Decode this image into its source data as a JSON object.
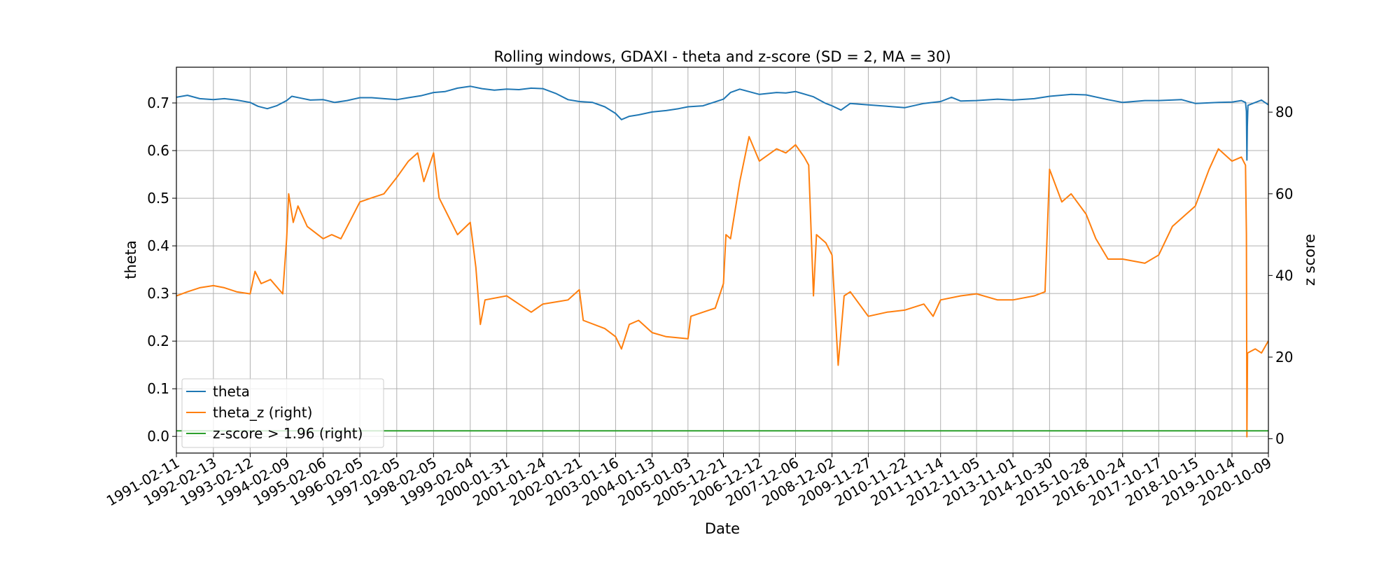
{
  "chart_data": {
    "type": "line",
    "title": "Rolling windows, GDAXI - theta and z-score (SD = 2, MA = 30)",
    "xlabel": "Date",
    "ylabel": "theta",
    "y2label": "z score",
    "grid": true,
    "legend_position": "lower-left",
    "ylim": [
      -0.035,
      0.775
    ],
    "y2lim": [
      -3.5,
      91
    ],
    "xlim": [
      "1991-02-11",
      "2020-10-09"
    ],
    "y_ticks": [
      "0.0",
      "0.1",
      "0.2",
      "0.3",
      "0.4",
      "0.5",
      "0.6",
      "0.7"
    ],
    "y2_ticks": [
      "0",
      "20",
      "40",
      "60",
      "80"
    ],
    "x_ticks": [
      "1991-02-11",
      "1992-02-13",
      "1993-02-12",
      "1994-02-09",
      "1995-02-06",
      "1996-02-05",
      "1997-02-05",
      "1998-02-05",
      "1999-02-04",
      "2000-01-31",
      "2001-01-24",
      "2002-01-21",
      "2003-01-16",
      "2004-01-13",
      "2005-01-03",
      "2005-12-21",
      "2006-12-12",
      "2007-12-06",
      "2008-12-02",
      "2009-11-27",
      "2010-11-22",
      "2011-11-14",
      "2012-11-05",
      "2013-11-01",
      "2014-10-30",
      "2015-10-28",
      "2016-10-24",
      "2017-10-17",
      "2018-10-15",
      "2019-10-14",
      "2020-10-09"
    ],
    "series": [
      {
        "name": "theta",
        "axis": "left",
        "color": "#1f77b4",
        "points": [
          [
            "1991-02-11",
            0.712
          ],
          [
            "1991-06-01",
            0.716
          ],
          [
            "1991-10-01",
            0.709
          ],
          [
            "1992-02-13",
            0.707
          ],
          [
            "1992-06-01",
            0.709
          ],
          [
            "1992-10-01",
            0.706
          ],
          [
            "1993-02-12",
            0.701
          ],
          [
            "1993-05-01",
            0.693
          ],
          [
            "1993-08-01",
            0.688
          ],
          [
            "1993-11-01",
            0.694
          ],
          [
            "1994-02-09",
            0.705
          ],
          [
            "1994-04-01",
            0.714
          ],
          [
            "1994-07-01",
            0.71
          ],
          [
            "1994-10-01",
            0.706
          ],
          [
            "1995-02-06",
            0.707
          ],
          [
            "1995-06-01",
            0.701
          ],
          [
            "1995-10-01",
            0.705
          ],
          [
            "1996-02-05",
            0.711
          ],
          [
            "1996-06-01",
            0.711
          ],
          [
            "1996-10-01",
            0.709
          ],
          [
            "1997-02-05",
            0.707
          ],
          [
            "1997-06-01",
            0.711
          ],
          [
            "1997-10-01",
            0.715
          ],
          [
            "1998-02-05",
            0.722
          ],
          [
            "1998-06-01",
            0.724
          ],
          [
            "1998-10-01",
            0.731
          ],
          [
            "1999-02-04",
            0.735
          ],
          [
            "1999-06-01",
            0.73
          ],
          [
            "1999-10-01",
            0.727
          ],
          [
            "2000-01-31",
            0.729
          ],
          [
            "2000-06-01",
            0.728
          ],
          [
            "2000-10-01",
            0.731
          ],
          [
            "2001-01-24",
            0.73
          ],
          [
            "2001-06-01",
            0.72
          ],
          [
            "2001-10-01",
            0.707
          ],
          [
            "2002-01-21",
            0.703
          ],
          [
            "2002-06-01",
            0.701
          ],
          [
            "2002-10-01",
            0.692
          ],
          [
            "2003-01-16",
            0.678
          ],
          [
            "2003-03-15",
            0.665
          ],
          [
            "2003-06-01",
            0.672
          ],
          [
            "2003-09-01",
            0.675
          ],
          [
            "2004-01-13",
            0.681
          ],
          [
            "2004-06-01",
            0.684
          ],
          [
            "2004-10-01",
            0.688
          ],
          [
            "2005-01-03",
            0.692
          ],
          [
            "2005-06-01",
            0.694
          ],
          [
            "2005-12-21",
            0.708
          ],
          [
            "2006-03-01",
            0.722
          ],
          [
            "2006-06-01",
            0.729
          ],
          [
            "2006-12-12",
            0.718
          ],
          [
            "2007-06-01",
            0.722
          ],
          [
            "2007-09-01",
            0.721
          ],
          [
            "2007-12-06",
            0.724
          ],
          [
            "2008-06-01",
            0.713
          ],
          [
            "2008-10-01",
            0.699
          ],
          [
            "2008-12-02",
            0.694
          ],
          [
            "2009-03-01",
            0.685
          ],
          [
            "2009-06-01",
            0.699
          ],
          [
            "2009-11-27",
            0.696
          ],
          [
            "2010-06-01",
            0.693
          ],
          [
            "2010-11-22",
            0.69
          ],
          [
            "2011-06-01",
            0.699
          ],
          [
            "2011-11-14",
            0.703
          ],
          [
            "2012-03-01",
            0.712
          ],
          [
            "2012-06-01",
            0.704
          ],
          [
            "2012-11-05",
            0.705
          ],
          [
            "2013-06-01",
            0.708
          ],
          [
            "2013-11-01",
            0.706
          ],
          [
            "2014-06-01",
            0.709
          ],
          [
            "2014-10-30",
            0.714
          ],
          [
            "2015-06-01",
            0.718
          ],
          [
            "2015-10-28",
            0.717
          ],
          [
            "2016-06-01",
            0.707
          ],
          [
            "2016-10-24",
            0.701
          ],
          [
            "2017-06-01",
            0.705
          ],
          [
            "2017-10-17",
            0.705
          ],
          [
            "2018-06-01",
            0.707
          ],
          [
            "2018-10-15",
            0.699
          ],
          [
            "2019-06-01",
            0.701
          ],
          [
            "2019-10-14",
            0.702
          ],
          [
            "2020-01-15",
            0.705
          ],
          [
            "2020-02-25",
            0.701
          ],
          [
            "2020-03-05",
            0.682
          ],
          [
            "2020-03-10",
            0.58
          ],
          [
            "2020-03-14",
            0.65
          ],
          [
            "2020-03-20",
            0.695
          ],
          [
            "2020-06-01",
            0.701
          ],
          [
            "2020-08-01",
            0.706
          ],
          [
            "2020-10-09",
            0.696
          ]
        ]
      },
      {
        "name": "theta_z (right)",
        "axis": "right",
        "color": "#ff7f0e",
        "points": [
          [
            "1991-02-11",
            35
          ],
          [
            "1991-06-01",
            36
          ],
          [
            "1991-10-01",
            37
          ],
          [
            "1992-02-13",
            37.5
          ],
          [
            "1992-06-01",
            37
          ],
          [
            "1992-10-01",
            36
          ],
          [
            "1993-02-12",
            35.5
          ],
          [
            "1993-04-01",
            41
          ],
          [
            "1993-06-01",
            38
          ],
          [
            "1993-09-01",
            39
          ],
          [
            "1994-01-01",
            35.5
          ],
          [
            "1994-02-09",
            49
          ],
          [
            "1994-03-01",
            60
          ],
          [
            "1994-04-15",
            53
          ],
          [
            "1994-06-01",
            57
          ],
          [
            "1994-09-01",
            52
          ],
          [
            "1995-02-06",
            49
          ],
          [
            "1995-05-01",
            50
          ],
          [
            "1995-08-01",
            49
          ],
          [
            "1996-02-05",
            58
          ],
          [
            "1996-06-01",
            59
          ],
          [
            "1996-10-01",
            60
          ],
          [
            "1997-02-05",
            64
          ],
          [
            "1997-06-01",
            68
          ],
          [
            "1997-09-01",
            70
          ],
          [
            "1997-11-01",
            63
          ],
          [
            "1998-02-05",
            70
          ],
          [
            "1998-04-01",
            59
          ],
          [
            "1998-06-01",
            56
          ],
          [
            "1998-10-01",
            50
          ],
          [
            "1999-02-04",
            53
          ],
          [
            "1999-04-01",
            42
          ],
          [
            "1999-05-15",
            28
          ],
          [
            "1999-07-01",
            34
          ],
          [
            "2000-01-31",
            35
          ],
          [
            "2000-06-01",
            33
          ],
          [
            "2000-10-01",
            31
          ],
          [
            "2001-01-24",
            33
          ],
          [
            "2001-06-01",
            33.5
          ],
          [
            "2001-10-01",
            34
          ],
          [
            "2002-01-21",
            36.5
          ],
          [
            "2002-03-01",
            29
          ],
          [
            "2002-10-01",
            27
          ],
          [
            "2003-01-16",
            25
          ],
          [
            "2003-03-15",
            22
          ],
          [
            "2003-06-01",
            28
          ],
          [
            "2003-09-01",
            29
          ],
          [
            "2004-01-13",
            26
          ],
          [
            "2004-06-01",
            25
          ],
          [
            "2005-01-03",
            24.5
          ],
          [
            "2005-02-01",
            30
          ],
          [
            "2005-06-01",
            31
          ],
          [
            "2005-10-01",
            32
          ],
          [
            "2005-12-21",
            38
          ],
          [
            "2006-01-15",
            50
          ],
          [
            "2006-03-01",
            49
          ],
          [
            "2006-06-01",
            63
          ],
          [
            "2006-09-01",
            74
          ],
          [
            "2006-12-12",
            68
          ],
          [
            "2007-06-01",
            71
          ],
          [
            "2007-09-01",
            70
          ],
          [
            "2007-12-06",
            72
          ],
          [
            "2008-03-01",
            69
          ],
          [
            "2008-04-15",
            67
          ],
          [
            "2008-06-01",
            35
          ],
          [
            "2008-07-01",
            50
          ],
          [
            "2008-10-01",
            48
          ],
          [
            "2008-12-02",
            45
          ],
          [
            "2009-02-01",
            18
          ],
          [
            "2009-04-01",
            35
          ],
          [
            "2009-06-01",
            36
          ],
          [
            "2009-11-27",
            30
          ],
          [
            "2010-06-01",
            31
          ],
          [
            "2010-11-22",
            31.5
          ],
          [
            "2011-06-01",
            33
          ],
          [
            "2011-09-01",
            30
          ],
          [
            "2011-11-14",
            34
          ],
          [
            "2012-06-01",
            35
          ],
          [
            "2012-11-05",
            35.5
          ],
          [
            "2013-06-01",
            34
          ],
          [
            "2013-11-01",
            34
          ],
          [
            "2014-06-01",
            35
          ],
          [
            "2014-09-15",
            36
          ],
          [
            "2014-10-30",
            66
          ],
          [
            "2015-03-01",
            58
          ],
          [
            "2015-06-01",
            60
          ],
          [
            "2015-10-28",
            55
          ],
          [
            "2016-02-01",
            49
          ],
          [
            "2016-06-01",
            44
          ],
          [
            "2016-10-24",
            44
          ],
          [
            "2017-06-01",
            43
          ],
          [
            "2017-10-17",
            45
          ],
          [
            "2018-03-01",
            52
          ],
          [
            "2018-10-15",
            57
          ],
          [
            "2019-03-01",
            66
          ],
          [
            "2019-06-01",
            71
          ],
          [
            "2019-10-14",
            68
          ],
          [
            "2020-01-15",
            69
          ],
          [
            "2020-02-25",
            67
          ],
          [
            "2020-03-05",
            50
          ],
          [
            "2020-03-10",
            0.5
          ],
          [
            "2020-03-16",
            21
          ],
          [
            "2020-06-01",
            22
          ],
          [
            "2020-08-01",
            21
          ],
          [
            "2020-10-09",
            24
          ]
        ]
      },
      {
        "name": "z-score > 1.96 (right)",
        "axis": "right",
        "color": "#2ca02c",
        "points": [
          [
            "1991-02-11",
            1.96
          ],
          [
            "2020-10-09",
            1.96
          ]
        ]
      }
    ]
  }
}
